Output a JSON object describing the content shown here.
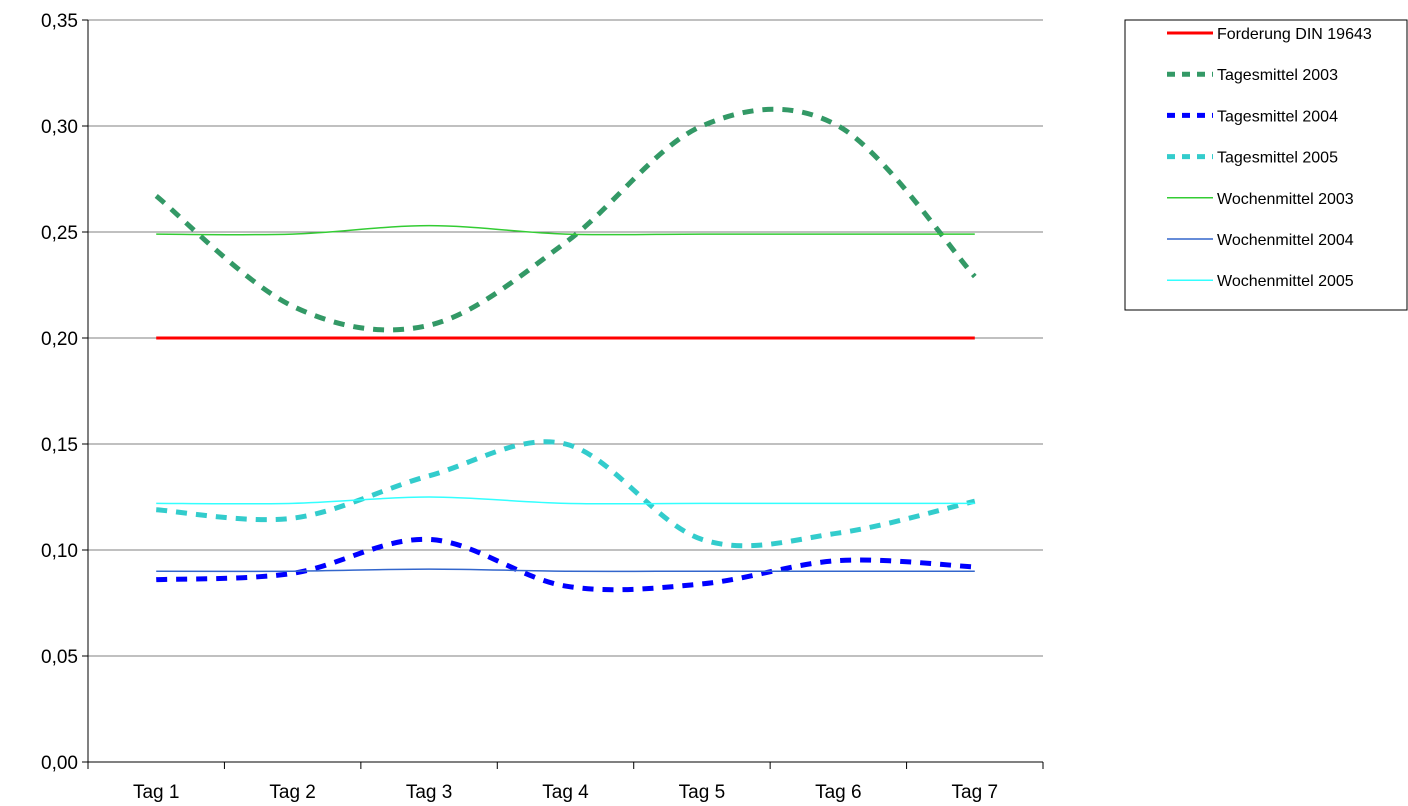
{
  "chart_data": {
    "type": "line",
    "title": "",
    "xlabel": "",
    "ylabel": "",
    "categories": [
      "Tag 1",
      "Tag 2",
      "Tag 3",
      "Tag 4",
      "Tag 5",
      "Tag 6",
      "Tag 7"
    ],
    "y_tick_labels": [
      "0,00",
      "0,05",
      "0,10",
      "0,15",
      "0,20",
      "0,25",
      "0,30",
      "0,35"
    ],
    "y_ticks": [
      0,
      0.05,
      0.1,
      0.15,
      0.2,
      0.25,
      0.3,
      0.35
    ],
    "ylim": [
      0,
      0.35
    ],
    "grid": true,
    "smooth": true,
    "legend_position": "top-right",
    "series": [
      {
        "name": "Forderung DIN 19643",
        "color": "#ff0000",
        "style": "solid-thick",
        "values": [
          0.2,
          0.2,
          0.2,
          0.2,
          0.2,
          0.2,
          0.2
        ]
      },
      {
        "name": "Tagesmittel 2003",
        "color": "#339966",
        "style": "dashed",
        "values": [
          0.267,
          0.215,
          0.206,
          0.245,
          0.3,
          0.3,
          0.229
        ]
      },
      {
        "name": "Tagesmittel 2004",
        "color": "#0000ff",
        "style": "dashed",
        "values": [
          0.086,
          0.089,
          0.105,
          0.083,
          0.084,
          0.095,
          0.092
        ]
      },
      {
        "name": "Tagesmittel 2005",
        "color": "#33cccc",
        "style": "dashed",
        "values": [
          0.119,
          0.115,
          0.135,
          0.15,
          0.105,
          0.108,
          0.123
        ]
      },
      {
        "name": "Wochenmittel 2003",
        "color": "#33cc33",
        "style": "solid-thin",
        "values": [
          0.249,
          0.249,
          0.253,
          0.249,
          0.249,
          0.249,
          0.249
        ]
      },
      {
        "name": "Wochenmittel 2004",
        "color": "#3366cc",
        "style": "solid-thin",
        "values": [
          0.09,
          0.09,
          0.091,
          0.09,
          0.09,
          0.09,
          0.09
        ]
      },
      {
        "name": "Wochenmittel 2005",
        "color": "#33ffff",
        "style": "solid-thin",
        "values": [
          0.122,
          0.122,
          0.125,
          0.122,
          0.122,
          0.122,
          0.122
        ]
      }
    ]
  }
}
